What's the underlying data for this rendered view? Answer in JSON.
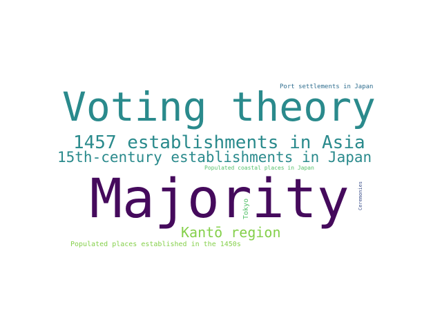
{
  "word_cloud": {
    "words": [
      {
        "text": "Voting theory",
        "color": "#2a8a8c"
      },
      {
        "text": "Majority",
        "color": "#450a5c"
      },
      {
        "text": "1457 establishments in Asia",
        "color": "#2a8a8c"
      },
      {
        "text": "15th-century establishments in Japan",
        "color": "#2a8a8c"
      },
      {
        "text": "Kantō region",
        "color": "#85d04b"
      },
      {
        "text": "Populated places established in the 1450s",
        "color": "#85d04b"
      },
      {
        "text": "Populated coastal places in Japan",
        "color": "#56c06b"
      },
      {
        "text": "Port settlements in Japan",
        "color": "#2e6d8e"
      },
      {
        "text": "Tokyo",
        "color": "#56c06b"
      },
      {
        "text": "Ceremonies",
        "color": "#3b4f8a"
      }
    ]
  }
}
